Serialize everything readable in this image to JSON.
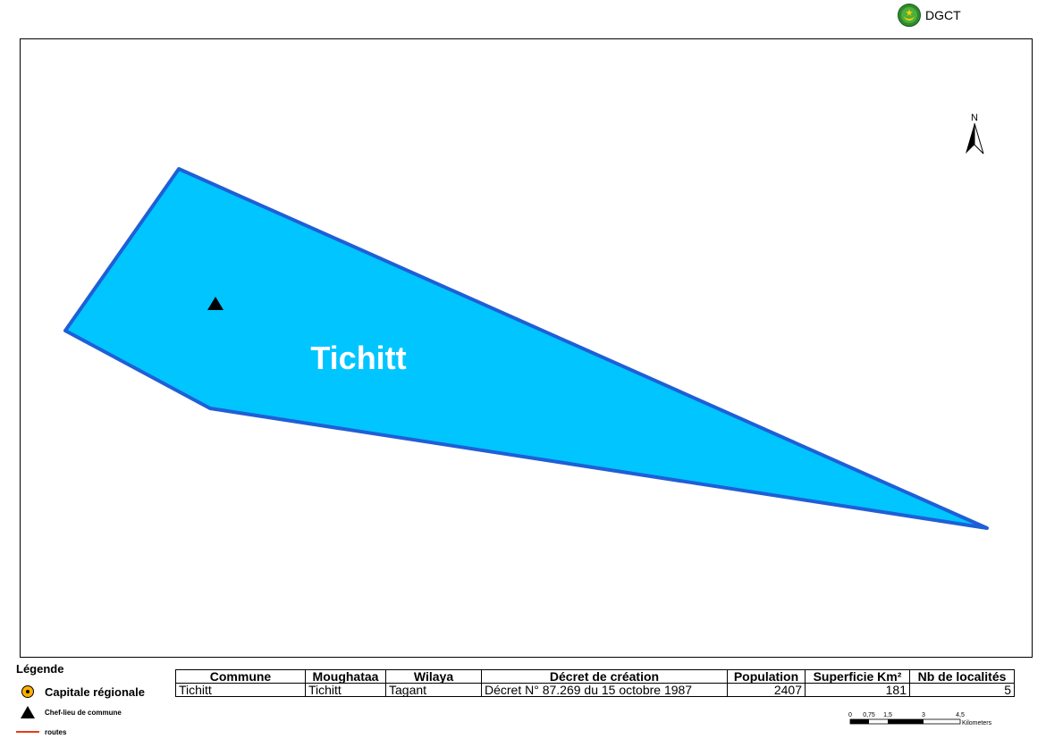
{
  "header": {
    "logo_text": "DGCT",
    "logo_icon": "mauritania-emblem-icon"
  },
  "map": {
    "commune_label": "Tichitt",
    "north_label": "N",
    "polygon_fill": "#00c5ff",
    "polygon_stroke": "#1f5fd6"
  },
  "legend": {
    "title": "Légende",
    "items": [
      {
        "label": "Capitale régionale",
        "symbol": "orange-circle-dot-icon"
      },
      {
        "label": "Chef-lieu de commune",
        "symbol": "black-triangle-icon"
      },
      {
        "label": "routes",
        "symbol": "red-line-icon"
      }
    ]
  },
  "table": {
    "headers": [
      "Commune",
      "Moughataa",
      "Wilaya",
      "Décret de création",
      "Population",
      "Superficie Km²",
      "Nb de localités"
    ],
    "rows": [
      [
        "Tichitt",
        "Tichitt",
        "Tagant",
        "Décret N° 87.269 du 15 octobre 1987",
        "2407",
        "181",
        "5"
      ]
    ]
  },
  "scale_bar": {
    "ticks": [
      "0",
      "0,75",
      "1,5",
      "3",
      "4,5"
    ],
    "unit": "Kilometers"
  }
}
